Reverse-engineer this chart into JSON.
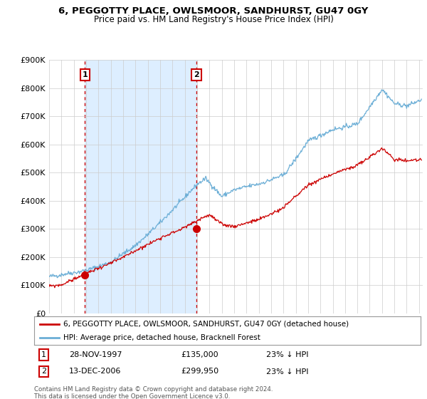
{
  "title": "6, PEGGOTTY PLACE, OWLSMOOR, SANDHURST, GU47 0GY",
  "subtitle": "Price paid vs. HM Land Registry's House Price Index (HPI)",
  "ylim": [
    0,
    900000
  ],
  "yticks": [
    0,
    100000,
    200000,
    300000,
    400000,
    500000,
    600000,
    700000,
    800000,
    900000
  ],
  "ytick_labels": [
    "£0",
    "£100K",
    "£200K",
    "£300K",
    "£400K",
    "£500K",
    "£600K",
    "£700K",
    "£800K",
    "£900K"
  ],
  "hpi_color": "#6baed6",
  "price_color": "#cc0000",
  "shade_color": "#ddeeff",
  "sale1_date": 1997.91,
  "sale1_price": 135000,
  "sale2_date": 2006.95,
  "sale2_price": 299950,
  "legend_price_label": "6, PEGGOTTY PLACE, OWLSMOOR, SANDHURST, GU47 0GY (detached house)",
  "legend_hpi_label": "HPI: Average price, detached house, Bracknell Forest",
  "annotation1_date": "28-NOV-1997",
  "annotation1_price": "£135,000",
  "annotation1_pct": "23% ↓ HPI",
  "annotation2_date": "13-DEC-2006",
  "annotation2_price": "£299,950",
  "annotation2_pct": "23% ↓ HPI",
  "footer": "Contains HM Land Registry data © Crown copyright and database right 2024.\nThis data is licensed under the Open Government Licence v3.0.",
  "background_color": "#ffffff",
  "grid_color": "#cccccc",
  "xmin": 1995,
  "xmax": 2025.3
}
